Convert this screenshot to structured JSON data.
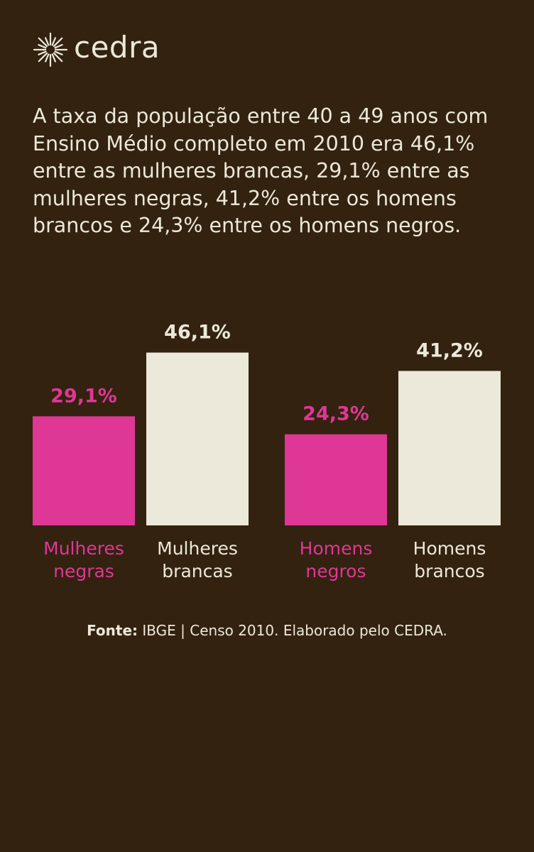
{
  "brand": {
    "name": "cedra"
  },
  "headline": "A taxa da população entre 40 a 49 anos com Ensino Médio completo em 2010 era 46,1% entre as mulheres brancas, 29,1% entre as mulheres negras, 41,2% entre os homens brancos e 24,3% entre os homens negros.",
  "source": {
    "label": "Fonte:",
    "text": "IBGE | Censo 2010. Elaborado pelo CEDRA."
  },
  "colors": {
    "background": "#33220f",
    "pink": "#de3796",
    "cream": "#ece8da"
  },
  "chart_data": {
    "type": "bar",
    "categories": [
      "Mulheres negras",
      "Mulheres brancas",
      "Homens negros",
      "Homens brancos"
    ],
    "category_lines": [
      [
        "Mulheres",
        "negras"
      ],
      [
        "Mulheres",
        "brancas"
      ],
      [
        "Homens",
        "negros"
      ],
      [
        "Homens",
        "brancos"
      ]
    ],
    "values": [
      29.1,
      46.1,
      24.3,
      41.2
    ],
    "value_labels": [
      "29,1%",
      "46,1%",
      "24,3%",
      "41,2%"
    ],
    "bar_colors": [
      "#de3796",
      "#ece8da",
      "#de3796",
      "#ece8da"
    ],
    "label_colors": [
      "#de3796",
      "#ece8da",
      "#de3796",
      "#ece8da"
    ],
    "unit": "%",
    "grid": false,
    "axes": false,
    "legend": false
  }
}
